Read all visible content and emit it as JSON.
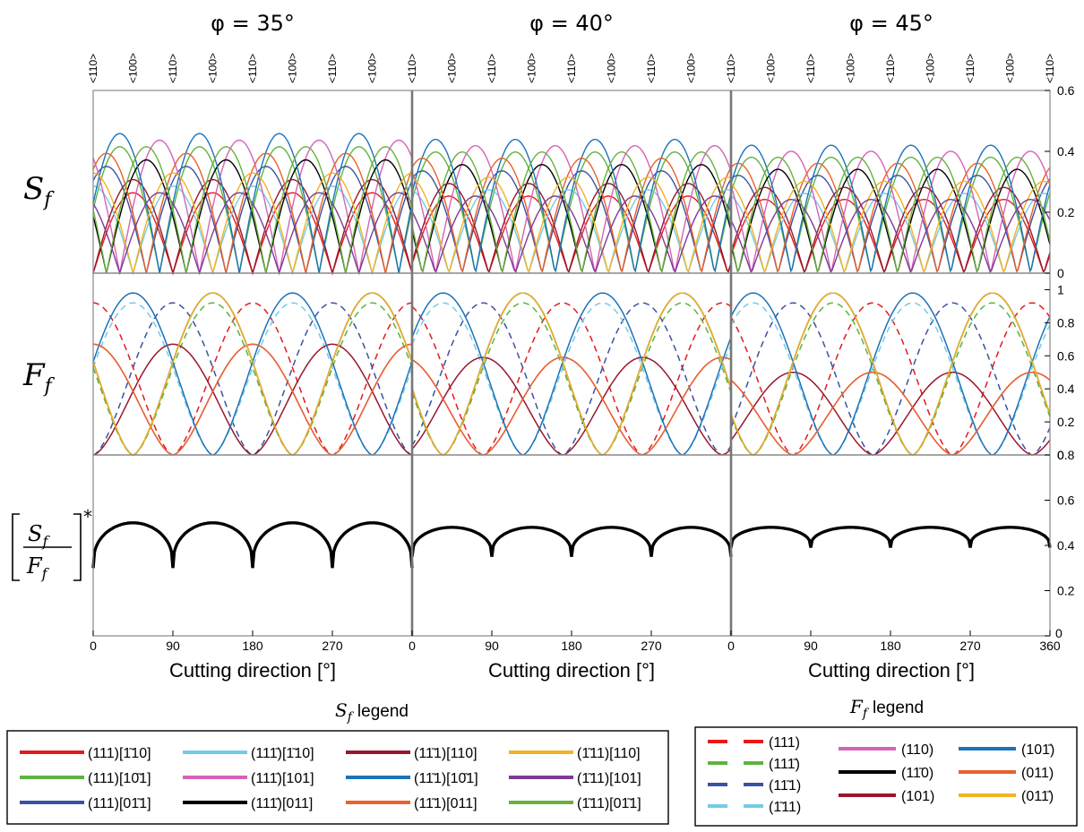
{
  "chart_data": {
    "type": "line",
    "panel_titles": [
      "φ = 35°",
      "φ = 40°",
      "φ = 45°"
    ],
    "directions": [
      "<110>",
      "<100>",
      "<110>",
      "<100>",
      "<110>",
      "<100>",
      "<110>",
      "<100>",
      "<110>"
    ],
    "xlabel": "Cutting direction [°]",
    "x_ticks": [
      "0",
      "90",
      "180",
      "270",
      "360"
    ],
    "rows": [
      {
        "label": "S",
        "sub": "f",
        "ylim": [
          0,
          0.6
        ],
        "yticks": [
          "0",
          "0.2",
          "0.4",
          "0.6"
        ]
      },
      {
        "label": "F",
        "sub": "f",
        "ylim": [
          0,
          1.1
        ],
        "yticks": [
          "0",
          "0.2",
          "0.4",
          "0.6",
          "0.8",
          "1"
        ]
      },
      {
        "label": "[S_f / F_f]*",
        "ylim": [
          0,
          0.8
        ],
        "yticks": [
          "0",
          "0.2",
          "0.4",
          "0.6",
          "0.8"
        ]
      }
    ],
    "ratio_series": [
      {
        "phi": 35,
        "min": 0.3,
        "max": 0.5
      },
      {
        "phi": 40,
        "min": 0.35,
        "max": 0.48
      },
      {
        "phi": 45,
        "min": 0.39,
        "max": 0.48
      }
    ],
    "sf_legend": {
      "title_symbol": "S",
      "title_sub": "f",
      "title_word": "legend",
      "entries": [
        {
          "label": "(111)[1̄10]",
          "color": "#e41a1c"
        },
        {
          "label": "(111)[10̄1]",
          "color": "#5db341"
        },
        {
          "label": "(111)[01̄1]",
          "color": "#3a52a3"
        },
        {
          "label": "(111̄)[1̄10]",
          "color": "#74cbe8"
        },
        {
          "label": "(111̄)[101]",
          "color": "#d563b7"
        },
        {
          "label": "(111̄)[011]",
          "color": "#000000"
        },
        {
          "label": "(11̄1)[110]",
          "color": "#98172b"
        },
        {
          "label": "(11̄1)[10̄1]",
          "color": "#1c72b8"
        },
        {
          "label": "(11̄1)[011]",
          "color": "#e9612b"
        },
        {
          "label": "(1̄11)[110]",
          "color": "#f0b323"
        },
        {
          "label": "(1̄11)[101]",
          "color": "#7e3a97"
        },
        {
          "label": "(1̄11)[01̄1]",
          "color": "#6ab03f"
        }
      ]
    },
    "ff_legend": {
      "title_symbol": "F",
      "title_sub": "f",
      "title_word": "legend",
      "entries": [
        {
          "label": "(111)",
          "color": "#e41a1c",
          "dashed": true
        },
        {
          "label": "(111̄)",
          "color": "#5db341",
          "dashed": true
        },
        {
          "label": "(11̄1)",
          "color": "#3a52a3",
          "dashed": true
        },
        {
          "label": "(1̄11)",
          "color": "#74cbe8",
          "dashed": true
        },
        {
          "label": "(110)",
          "color": "#d563b7",
          "dashed": false
        },
        {
          "label": "(11̄0)",
          "color": "#000000",
          "dashed": false
        },
        {
          "label": "(101)",
          "color": "#98172b",
          "dashed": false
        },
        {
          "label": "(101̄)",
          "color": "#1c72b8",
          "dashed": false
        },
        {
          "label": "(011)",
          "color": "#e9612b",
          "dashed": false
        },
        {
          "label": "(011̄)",
          "color": "#f0b323",
          "dashed": false
        }
      ]
    }
  }
}
